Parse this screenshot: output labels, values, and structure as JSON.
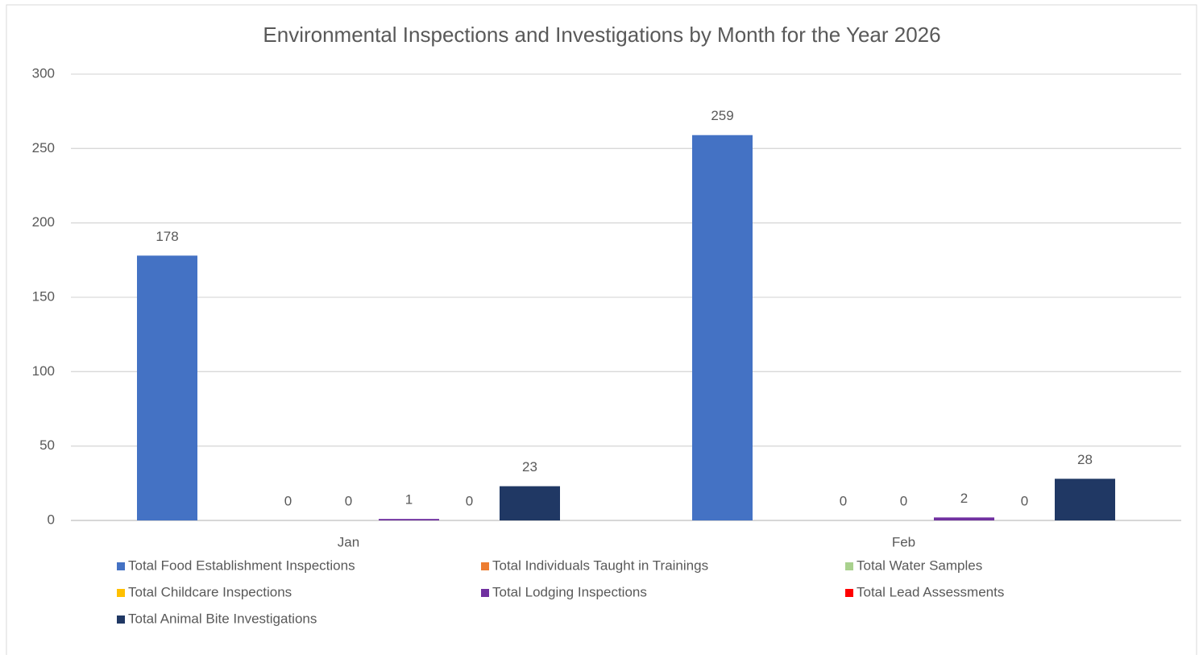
{
  "chart_data": {
    "type": "bar",
    "title": "Environmental Inspections and Investigations by Month for the Year 2026",
    "categories": [
      "Jan",
      "Feb"
    ],
    "series": [
      {
        "name": "Total Food Establishment Inspections",
        "color": "#4472c4",
        "values": [
          178,
          259
        ]
      },
      {
        "name": "Total Individuals Taught in Trainings",
        "color": "#ed7d31",
        "values": [
          null,
          null
        ]
      },
      {
        "name": "Total Water Samples",
        "color": "#a9d18e",
        "values": [
          0,
          0
        ]
      },
      {
        "name": "Total Childcare Inspections",
        "color": "#ffc000",
        "values": [
          0,
          0
        ]
      },
      {
        "name": "Total Lodging Inspections",
        "color": "#7030a0",
        "values": [
          1,
          2
        ]
      },
      {
        "name": "Total Lead Assessments",
        "color": "#ff0000",
        "values": [
          0,
          0
        ]
      },
      {
        "name": "Total Animal Bite Investigations",
        "color": "#203864",
        "values": [
          23,
          28
        ]
      }
    ],
    "ylim": [
      0,
      300
    ],
    "yticks": [
      0,
      50,
      100,
      150,
      200,
      250,
      300
    ],
    "grid": true,
    "legend": "bottom"
  }
}
